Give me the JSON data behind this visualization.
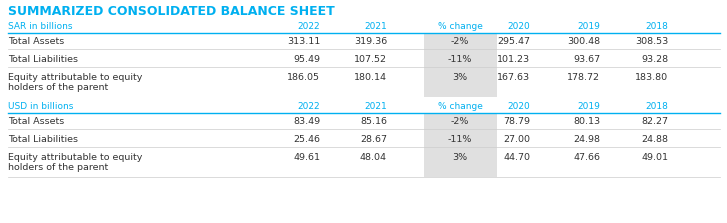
{
  "title": "SUMMARIZED CONSOLIDATED BALANCE SHEET",
  "title_color": "#00b0f0",
  "background_color": "#ffffff",
  "header_color": "#00b0f0",
  "pct_change_bg": "#e0e0e0",
  "sar_header": "SAR in billions",
  "usd_header": "USD in billions",
  "col_headers": [
    "2022",
    "2021",
    "% change",
    "2020",
    "2019",
    "2018"
  ],
  "sar_rows": [
    [
      "Total Assets",
      "313.11",
      "319.36",
      "-2%",
      "295.47",
      "300.48",
      "308.53"
    ],
    [
      "Total Liabilities",
      "95.49",
      "107.52",
      "-11%",
      "101.23",
      "93.67",
      "93.28"
    ],
    [
      "Equity attributable to equity\nholders of the parent",
      "186.05",
      "180.14",
      "3%",
      "167.63",
      "178.72",
      "183.80"
    ]
  ],
  "usd_rows": [
    [
      "Total Assets",
      "83.49",
      "85.16",
      "-2%",
      "78.79",
      "80.13",
      "82.27"
    ],
    [
      "Total Liabilities",
      "25.46",
      "28.67",
      "-11%",
      "27.00",
      "24.98",
      "24.88"
    ],
    [
      "Equity attributable to equity\nholders of the parent",
      "49.61",
      "48.04",
      "3%",
      "44.70",
      "47.66",
      "49.01"
    ]
  ],
  "fig_width": 7.27,
  "fig_height": 2.23,
  "dpi": 100
}
